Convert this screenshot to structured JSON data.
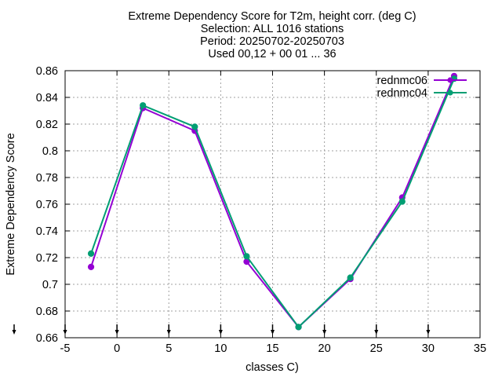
{
  "chart_data": {
    "type": "line",
    "title_lines": [
      "Extreme Dependency Score  for T2m, height corr. (deg C)",
      "Selection: ALL   1016 stations",
      "Period: 20250702-20250703",
      "Used 00,12 + 00 01 ... 36"
    ],
    "xlabel": "classes C)",
    "ylabel": "Extreme Dependency Score",
    "xlim": [
      -5,
      35
    ],
    "ylim": [
      0.66,
      0.86
    ],
    "xticks": [
      -5,
      0,
      5,
      10,
      15,
      20,
      25,
      30,
      35
    ],
    "yticks": [
      0.66,
      0.68,
      0.7,
      0.72,
      0.74,
      0.76,
      0.78,
      0.8,
      0.82,
      0.84,
      0.86
    ],
    "grid": true,
    "legend_position": "top-right",
    "series": [
      {
        "name": "rednmc06",
        "color": "#9400d3",
        "x": [
          -2.5,
          2.5,
          7.5,
          12.5,
          17.5,
          22.5,
          27.5,
          32.5
        ],
        "y": [
          0.713,
          0.832,
          0.815,
          0.717,
          0.668,
          0.704,
          0.765,
          0.856
        ]
      },
      {
        "name": "rednmc04",
        "color": "#009e73",
        "x": [
          -2.5,
          2.5,
          7.5,
          12.5,
          17.5,
          22.5,
          27.5,
          32.5
        ],
        "y": [
          0.723,
          0.834,
          0.818,
          0.721,
          0.668,
          0.705,
          0.762,
          0.854
        ]
      }
    ],
    "bottom_markers_x": [
      -5,
      0,
      5,
      10,
      15,
      20,
      25,
      30
    ]
  }
}
